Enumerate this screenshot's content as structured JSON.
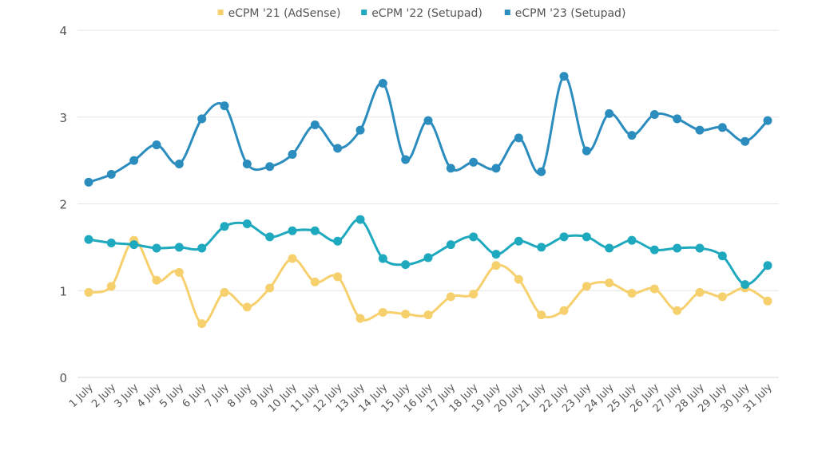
{
  "chart_data": {
    "type": "line",
    "title": "",
    "xlabel": "",
    "ylabel": "",
    "ylim": [
      0,
      4
    ],
    "yticks": [
      "0",
      "1",
      "2",
      "3",
      "4"
    ],
    "grid": true,
    "legend_position": "top",
    "categories": [
      "1 July",
      "2 July",
      "3 July",
      "4 July",
      "5 July",
      "6 July",
      "7 July",
      "8 July",
      "9 July",
      "10 July",
      "11 July",
      "12 July",
      "13 July",
      "14 July",
      "15 July",
      "16 July",
      "17 July",
      "18 July",
      "19 July",
      "20 July",
      "21 July",
      "22 July",
      "23 July",
      "24 July",
      "25 July",
      "26 July",
      "27 July",
      "28 July",
      "29 July",
      "30 July",
      "31 July"
    ],
    "series": [
      {
        "name": "eCPM '21 (AdSense)",
        "color": "#f7d06e",
        "values": [
          0.98,
          1.05,
          1.58,
          1.12,
          1.21,
          0.62,
          0.98,
          0.81,
          1.03,
          1.37,
          1.1,
          1.16,
          0.68,
          0.75,
          0.73,
          0.72,
          0.93,
          0.96,
          1.29,
          1.13,
          0.72,
          0.77,
          1.05,
          1.09,
          0.97,
          1.02,
          0.77,
          0.98,
          0.93,
          1.03,
          0.88
        ]
      },
      {
        "name": "eCPM '22 (Setupad)",
        "color": "#1ea9be",
        "values": [
          1.59,
          1.55,
          1.53,
          1.49,
          1.5,
          1.49,
          1.74,
          1.77,
          1.62,
          1.69,
          1.69,
          1.57,
          1.82,
          1.37,
          1.3,
          1.38,
          1.53,
          1.62,
          1.42,
          1.57,
          1.5,
          1.62,
          1.62,
          1.49,
          1.58,
          1.47,
          1.49,
          1.49,
          1.4,
          1.07,
          1.29
        ]
      },
      {
        "name": "eCPM '23 (Setupad)",
        "color": "#2b8cbe",
        "values": [
          2.25,
          2.34,
          2.5,
          2.68,
          2.46,
          2.98,
          3.13,
          2.46,
          2.43,
          2.57,
          2.91,
          2.64,
          2.85,
          3.39,
          2.51,
          2.96,
          2.41,
          2.48,
          2.41,
          2.76,
          2.37,
          3.47,
          2.61,
          3.04,
          2.79,
          3.03,
          2.98,
          2.85,
          2.88,
          2.72,
          2.96
        ]
      }
    ]
  }
}
